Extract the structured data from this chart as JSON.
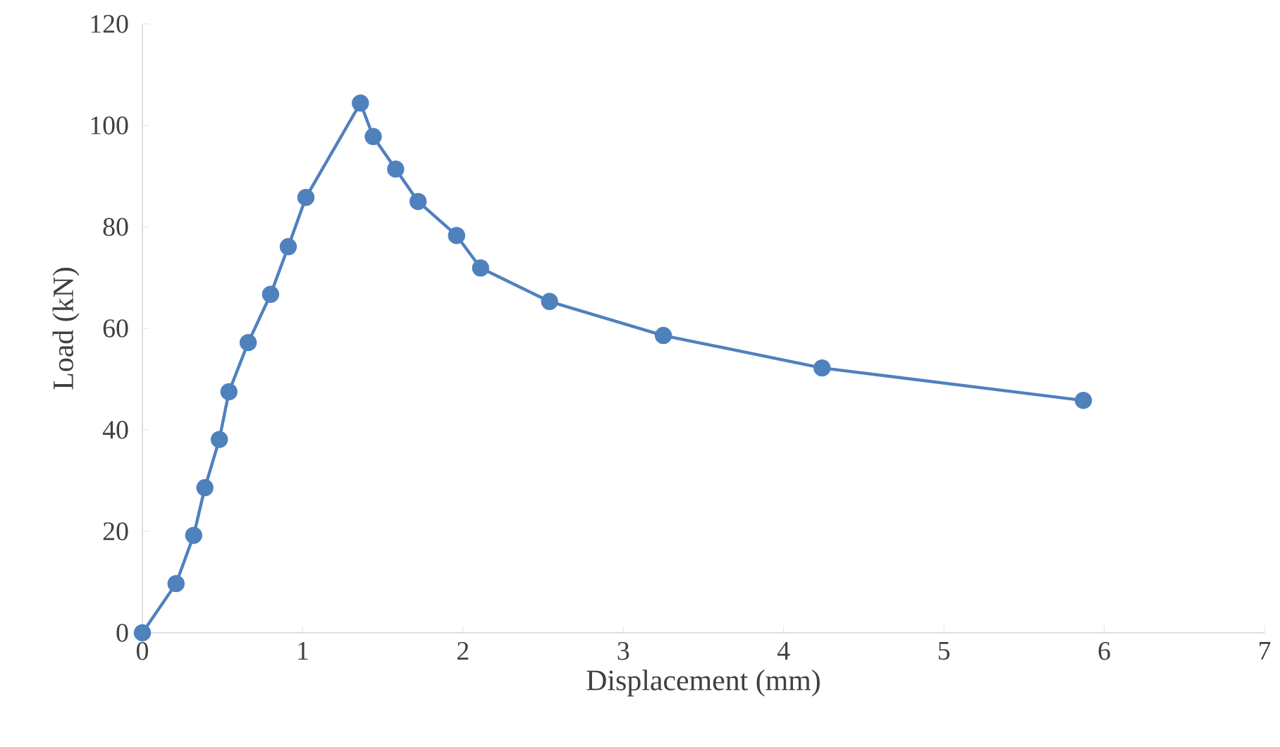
{
  "chart_data": {
    "type": "line",
    "xlabel": "Displacement (mm)",
    "ylabel": "Load (kN)",
    "xlim": [
      0,
      7
    ],
    "ylim": [
      0,
      120
    ],
    "xticks": [
      0,
      1,
      2,
      3,
      4,
      5,
      6,
      7
    ],
    "yticks": [
      0,
      20,
      40,
      60,
      80,
      100,
      120
    ],
    "grid": false,
    "marker": "circle",
    "line_style": "solid",
    "series": [
      {
        "color": "#4f81bd",
        "x": [
          0,
          0.21,
          0.32,
          0.39,
          0.48,
          0.54,
          0.66,
          0.8,
          0.91,
          1.02,
          1.36,
          1.44,
          1.58,
          1.72,
          1.96,
          2.11,
          2.54,
          3.25,
          4.24,
          5.87
        ],
        "values": [
          0,
          9.7,
          19.2,
          28.6,
          38.1,
          47.5,
          57.2,
          66.7,
          76.1,
          85.8,
          104.4,
          97.8,
          91.4,
          85,
          78.3,
          71.9,
          65.3,
          58.6,
          52.2,
          45.8
        ]
      }
    ]
  }
}
